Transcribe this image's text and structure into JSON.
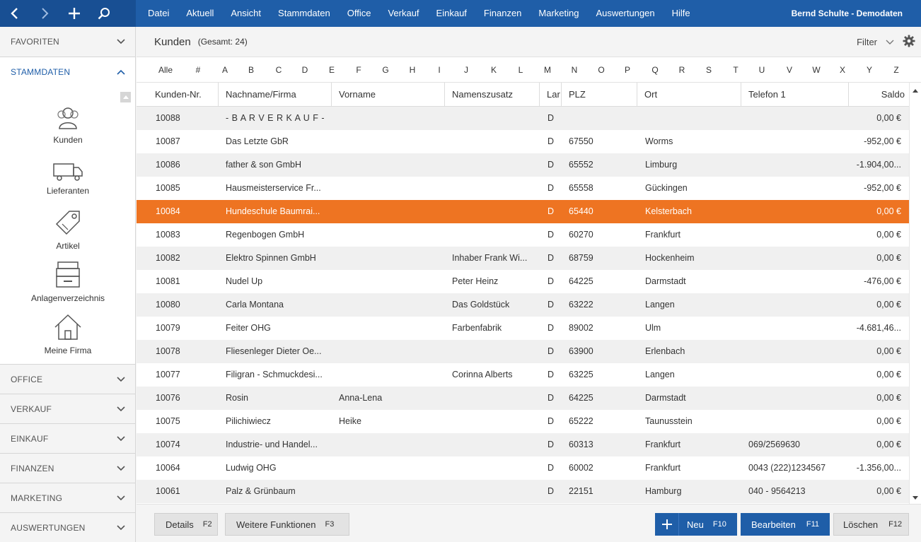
{
  "topbar": {
    "menu": [
      "Datei",
      "Aktuell",
      "Ansicht",
      "Stammdaten",
      "Office",
      "Verkauf",
      "Einkauf",
      "Finanzen",
      "Marketing",
      "Auswertungen",
      "Hilfe"
    ],
    "user": "Bernd Schulte - Demodaten",
    "icons": [
      "back-icon",
      "forward-icon",
      "add-icon",
      "search-icon"
    ]
  },
  "sidebar": {
    "favoriten": "FAVORITEN",
    "stammdaten": "STAMMDATEN",
    "items": [
      {
        "label": "Kunden",
        "icon": "customers-icon"
      },
      {
        "label": "Lieferanten",
        "icon": "truck-icon"
      },
      {
        "label": "Artikel",
        "icon": "tag-icon"
      },
      {
        "label": "Anlagenverzeichnis",
        "icon": "archive-box-icon"
      },
      {
        "label": "Meine Firma",
        "icon": "house-icon"
      }
    ],
    "sections": [
      "OFFICE",
      "VERKAUF",
      "EINKAUF",
      "FINANZEN",
      "MARKETING",
      "AUSWERTUNGEN"
    ]
  },
  "header": {
    "title": "Kunden",
    "count": "(Gesamt: 24)",
    "filter": "Filter"
  },
  "alphabet": [
    "Alle",
    "#",
    "A",
    "B",
    "C",
    "D",
    "E",
    "F",
    "G",
    "H",
    "I",
    "J",
    "K",
    "L",
    "M",
    "N",
    "O",
    "P",
    "Q",
    "R",
    "S",
    "T",
    "U",
    "V",
    "W",
    "X",
    "Y",
    "Z"
  ],
  "table": {
    "columns": [
      "Kunden-Nr.",
      "Nachname/Firma",
      "Vorname",
      "Namenszusatz",
      "Lar",
      "PLZ",
      "Ort",
      "Telefon 1",
      "Saldo"
    ],
    "rows": [
      [
        "10088",
        "- B A R V E R K A U F -",
        "",
        "",
        "D",
        "",
        "",
        "",
        "0,00 €"
      ],
      [
        "10087",
        "Das Letzte GbR",
        "",
        "",
        "D",
        "67550",
        "Worms",
        "",
        "-952,00 €"
      ],
      [
        "10086",
        "father & son GmbH",
        "",
        "",
        "D",
        "65552",
        "Limburg",
        "",
        "-1.904,00..."
      ],
      [
        "10085",
        "Hausmeisterservice Fr...",
        "",
        "",
        "D",
        "65558",
        "Gückingen",
        "",
        "-952,00 €"
      ],
      [
        "10084",
        "Hundeschule Baumrai...",
        "",
        "",
        "D",
        "65440",
        "Kelsterbach",
        "",
        "0,00 €"
      ],
      [
        "10083",
        "Regenbogen GmbH",
        "",
        "",
        "D",
        "60270",
        "Frankfurt",
        "",
        "0,00 €"
      ],
      [
        "10082",
        "Elektro Spinnen GmbH",
        "",
        "Inhaber Frank Wi...",
        "D",
        "68759",
        "Hockenheim",
        "",
        "0,00 €"
      ],
      [
        "10081",
        "Nudel Up",
        "",
        "Peter Heinz",
        "D",
        "64225",
        "Darmstadt",
        "",
        "-476,00 €"
      ],
      [
        "10080",
        "Carla Montana",
        "",
        "Das Goldstück",
        "D",
        "63222",
        "Langen",
        "",
        "0,00 €"
      ],
      [
        "10079",
        "Feiter OHG",
        "",
        "Farbenfabrik",
        "D",
        "89002",
        "Ulm",
        "",
        "-4.681,46..."
      ],
      [
        "10078",
        "Fliesenleger Dieter Oe...",
        "",
        "",
        "D",
        "63900",
        "Erlenbach",
        "",
        "0,00 €"
      ],
      [
        "10077",
        "Filigran - Schmuckdesi...",
        "",
        "Corinna Alberts",
        "D",
        "63225",
        "Langen",
        "",
        "0,00 €"
      ],
      [
        "10076",
        "Rosin",
        "Anna-Lena",
        "",
        "D",
        "64225",
        "Darmstadt",
        "",
        "0,00 €"
      ],
      [
        "10075",
        "Pilichiwiecz",
        "Heike",
        "",
        "D",
        "65222",
        "Taunusstein",
        "",
        "0,00 €"
      ],
      [
        "10074",
        "Industrie- und Handel...",
        "",
        "",
        "D",
        "60313",
        "Frankfurt",
        "069/2569630",
        "0,00 €"
      ],
      [
        "10064",
        "Ludwig OHG",
        "",
        "",
        "D",
        "60002",
        "Frankfurt",
        "0043 (222)1234567",
        "-1.356,00..."
      ],
      [
        "10061",
        "Palz & Grünbaum",
        "",
        "",
        "D",
        "22151",
        "Hamburg",
        "040 - 9564213",
        "0,00 €"
      ]
    ],
    "selected": "10084"
  },
  "buttons": {
    "details": "Details",
    "details_key": "F2",
    "weitere": "Weitere Funktionen",
    "weitere_key": "F3",
    "neu": "Neu",
    "neu_key": "F10",
    "bearbeiten": "Bearbeiten",
    "bearbeiten_key": "F11",
    "loeschen": "Löschen",
    "loeschen_key": "F12"
  },
  "colors": {
    "accent": "#1f5ea8",
    "selection": "#ee7422"
  }
}
